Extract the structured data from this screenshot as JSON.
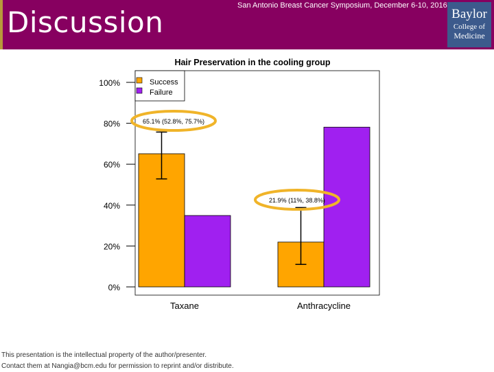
{
  "slide": {
    "title": "Discussion",
    "conference": "San Antonio Breast Cancer Symposium, December 6-10, 2016",
    "logo": {
      "line1": "Baylor",
      "line2": "College of",
      "line3": "Medicine"
    },
    "footer_line1": "This presentation is the intellectual property of the author/presenter.",
    "footer_line2": "Contact them at Nangia@bcm.edu for permission to reprint and/or distribute."
  },
  "colors": {
    "header": "#870060",
    "success": "#FFA500",
    "failure": "#A020F0",
    "highlight": "#F0B429",
    "logo": "#3c5a8c"
  },
  "chart_data": {
    "type": "bar",
    "title": "Hair Preservation in the cooling group",
    "xlabel": "",
    "ylabel": "",
    "categories": [
      "Taxane",
      "Anthracycline"
    ],
    "series": [
      {
        "name": "Success",
        "color": "#FFA500",
        "values": [
          65.1,
          21.9
        ]
      },
      {
        "name": "Failure",
        "color": "#A020F0",
        "values": [
          34.9,
          78.1
        ]
      }
    ],
    "error_bars": [
      {
        "category": "Taxane",
        "series": "Success",
        "low": 52.8,
        "high": 75.7
      },
      {
        "category": "Anthracycline",
        "series": "Success",
        "low": 11,
        "high": 38.8
      }
    ],
    "annotations": [
      {
        "category": "Taxane",
        "text": "65.1% (52.8%, 75.7%)"
      },
      {
        "category": "Anthracycline",
        "text": "21.9% (11%, 38.8%)"
      }
    ],
    "ylim": [
      0,
      100
    ],
    "yticks": [
      0,
      20,
      40,
      60,
      80,
      100
    ],
    "ytick_labels": [
      "0%",
      "20%",
      "40%",
      "60%",
      "80%",
      "100%"
    ],
    "legend": {
      "entries": [
        "Success",
        "Failure"
      ],
      "position": "top-left"
    }
  }
}
